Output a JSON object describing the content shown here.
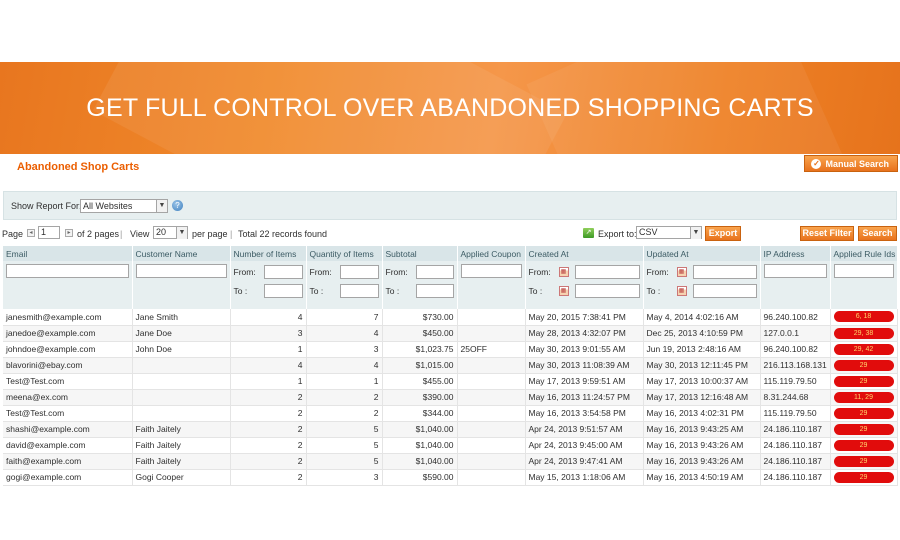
{
  "banner": {
    "title": "GET FULL CONTROL OVER ABANDONED SHOPPING CARTS"
  },
  "header": {
    "page_title": "Abandoned Shop Carts",
    "manual_search_label": "Manual Search",
    "manual_search_icon": "check-circle-icon"
  },
  "filter": {
    "show_report_label": "Show Report For:",
    "website_value": "All Websites"
  },
  "pager": {
    "page_label": "Page",
    "page_value": "1",
    "of_pages": "of 2 pages",
    "view_label": "View",
    "view_value": "20",
    "per_page": "per page",
    "total": "Total 22 records found",
    "export_label": "Export to:",
    "export_value": "CSV",
    "export_button": "Export",
    "reset_button": "Reset Filter",
    "search_button": "Search"
  },
  "filters": {
    "from": "From:",
    "to": "To :"
  },
  "columns": [
    "Email",
    "Customer Name",
    "Number of Items",
    "Quantity of Items",
    "Subtotal",
    "Applied Coupon",
    "Created At",
    "Updated At",
    "IP Address",
    "Applied Rule Ids"
  ],
  "rows": [
    {
      "email": "janesmith@example.com",
      "name": "Jane Smith",
      "items": "4",
      "qty": "7",
      "subtotal": "$730.00",
      "coupon": "",
      "created": "May 20, 2015 7:38:41 PM",
      "updated": "May 4, 2014 4:02:16 AM",
      "ip": "96.240.100.82",
      "rules": "6, 18"
    },
    {
      "email": "janedoe@example.com",
      "name": "Jane Doe",
      "items": "3",
      "qty": "4",
      "subtotal": "$450.00",
      "coupon": "",
      "created": "May 28, 2013 4:32:07 PM",
      "updated": "Dec 25, 2013 4:10:59 PM",
      "ip": "127.0.0.1",
      "rules": "29, 38"
    },
    {
      "email": "johndoe@example.com",
      "name": "John Doe",
      "items": "1",
      "qty": "3",
      "subtotal": "$1,023.75",
      "coupon": "25OFF",
      "created": "May 30, 2013 9:01:55 AM",
      "updated": "Jun 19, 2013 2:48:16 AM",
      "ip": "96.240.100.82",
      "rules": "29, 42"
    },
    {
      "email": "blavorini@ebay.com",
      "name": "",
      "items": "4",
      "qty": "4",
      "subtotal": "$1,015.00",
      "coupon": "",
      "created": "May 30, 2013 11:08:39 AM",
      "updated": "May 30, 2013 12:11:45 PM",
      "ip": "216.113.168.131",
      "rules": "29"
    },
    {
      "email": "Test@Test.com",
      "name": "",
      "items": "1",
      "qty": "1",
      "subtotal": "$455.00",
      "coupon": "",
      "created": "May 17, 2013 9:59:51 AM",
      "updated": "May 17, 2013 10:00:37 AM",
      "ip": "115.119.79.50",
      "rules": "29"
    },
    {
      "email": "meena@ex.com",
      "name": "",
      "items": "2",
      "qty": "2",
      "subtotal": "$390.00",
      "coupon": "",
      "created": "May 16, 2013 11:24:57 PM",
      "updated": "May 17, 2013 12:16:48 AM",
      "ip": "8.31.244.68",
      "rules": "11, 29"
    },
    {
      "email": "Test@Test.com",
      "name": "",
      "items": "2",
      "qty": "2",
      "subtotal": "$344.00",
      "coupon": "",
      "created": "May 16, 2013 3:54:58 PM",
      "updated": "May 16, 2013 4:02:31 PM",
      "ip": "115.119.79.50",
      "rules": "29"
    },
    {
      "email": "shashi@example.com",
      "name": "Faith Jaitely",
      "items": "2",
      "qty": "5",
      "subtotal": "$1,040.00",
      "coupon": "",
      "created": "Apr 24, 2013 9:51:57 AM",
      "updated": "May 16, 2013 9:43:25 AM",
      "ip": "24.186.110.187",
      "rules": "29"
    },
    {
      "email": "david@example.com",
      "name": "Faith Jaitely",
      "items": "2",
      "qty": "5",
      "subtotal": "$1,040.00",
      "coupon": "",
      "created": "Apr 24, 2013 9:45:00 AM",
      "updated": "May 16, 2013 9:43:26 AM",
      "ip": "24.186.110.187",
      "rules": "29"
    },
    {
      "email": "faith@example.com",
      "name": "Faith Jaitely",
      "items": "2",
      "qty": "5",
      "subtotal": "$1,040.00",
      "coupon": "",
      "created": "Apr 24, 2013 9:47:41 AM",
      "updated": "May 16, 2013 9:43:26 AM",
      "ip": "24.186.110.187",
      "rules": "29"
    },
    {
      "email": "gogi@example.com",
      "name": "Gogi Cooper",
      "items": "2",
      "qty": "3",
      "subtotal": "$590.00",
      "coupon": "",
      "created": "May 15, 2013 1:18:06 AM",
      "updated": "May 16, 2013 4:50:19 AM",
      "ip": "24.186.110.187",
      "rules": "29"
    }
  ],
  "colors": {
    "accent": "#e8721d",
    "title": "#eb5e00",
    "pill": "#e10c0c",
    "header_bg": "#d9e5e8"
  }
}
